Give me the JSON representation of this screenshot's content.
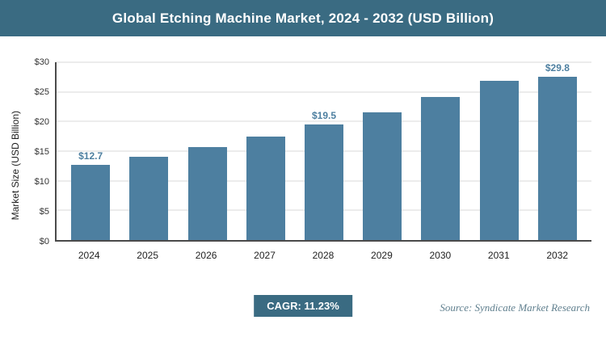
{
  "header": {
    "title": "Global Etching Machine Market, 2024 - 2032 (USD Billion)"
  },
  "chart_data": {
    "type": "bar",
    "title": "Global Etching Machine Market, 2024 - 2032 (USD Billion)",
    "categories": [
      "2024",
      "2025",
      "2026",
      "2027",
      "2028",
      "2029",
      "2030",
      "2031",
      "2032"
    ],
    "values": [
      12.7,
      14.1,
      15.7,
      17.5,
      19.5,
      21.6,
      24.1,
      26.8,
      29.8
    ],
    "bar_labels": [
      "$12.7",
      "",
      "",
      "",
      "$19.5",
      "",
      "",
      "",
      "$29.8"
    ],
    "xlabel": "",
    "ylabel": "Market Size (USD Billion)",
    "ylim": [
      0,
      30
    ],
    "ytick_step": 5,
    "ytick_prefix": "$",
    "grid": true,
    "legend": "none",
    "bar_color": "#4d7fa0",
    "accent_color": "#3a6b82"
  },
  "footer": {
    "cagr_label": "CAGR: 11.23%",
    "source": "Source: Syndicate Market Research"
  }
}
